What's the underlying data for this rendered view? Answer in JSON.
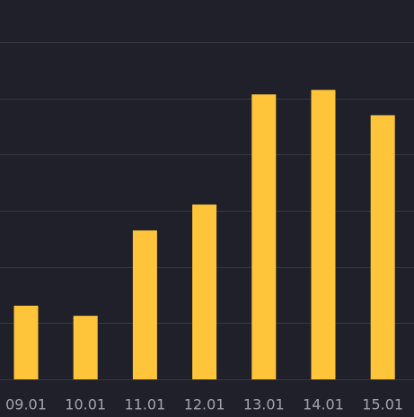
{
  "chart_data": {
    "type": "bar",
    "categories": [
      "09.01",
      "10.01",
      "11.01",
      "12.01",
      "13.01",
      "14.01",
      "15.01"
    ],
    "values": [
      1.31,
      1.13,
      2.65,
      3.11,
      5.07,
      5.15,
      4.7
    ],
    "color": "#ffc53a",
    "ylim": [
      0,
      6
    ],
    "yticks": [
      0,
      1,
      2,
      3,
      4,
      5,
      6
    ],
    "grid": true
  }
}
